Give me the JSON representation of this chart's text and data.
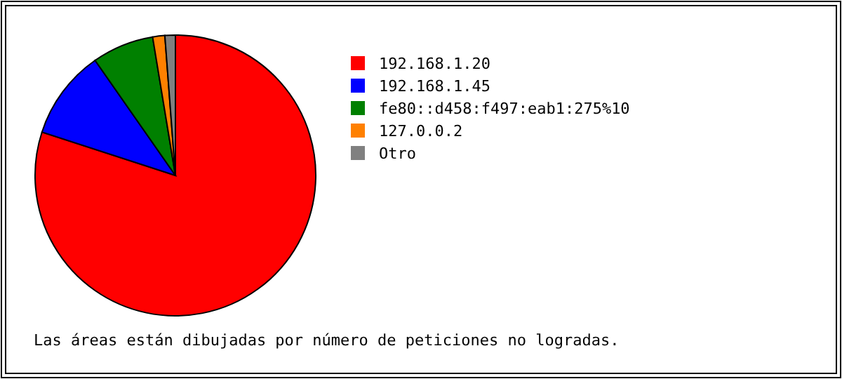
{
  "chart_data": {
    "type": "pie",
    "categories": [
      "192.168.1.20",
      "192.168.1.45",
      "fe80::d458:f497:eab1:275%10",
      "127.0.0.2",
      "Otro"
    ],
    "values": [
      80,
      10.3,
      7.1,
      1.4,
      1.2
    ],
    "colors": [
      "#ff0000",
      "#0000ff",
      "#008000",
      "#ff8000",
      "#808080"
    ],
    "legend": "right",
    "annotations": [
      "Las áreas están dibujadas por número de peticiones no logradas."
    ]
  }
}
